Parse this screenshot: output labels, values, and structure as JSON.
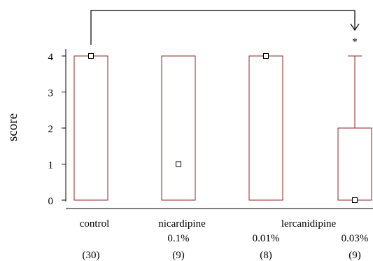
{
  "chart_data": {
    "type": "box",
    "ylabel": "score",
    "ylim": [
      0,
      4
    ],
    "yticks": [
      0,
      1,
      2,
      3,
      4
    ],
    "boxes": [
      {
        "category": "control",
        "concentration": "",
        "n": "(30)",
        "min": 0,
        "q1": 0,
        "q3": 4,
        "max": 4,
        "median": 4
      },
      {
        "category": "nicardipine",
        "concentration": "0.1%",
        "n": "(9)",
        "min": 0,
        "q1": 0,
        "q3": 4,
        "max": 4,
        "median": 1
      },
      {
        "category": "",
        "concentration": "0.01%",
        "n": "(8)",
        "min": 0,
        "q1": 0,
        "q3": 4,
        "max": 4,
        "median": 4
      },
      {
        "category": "",
        "concentration": "0.03%",
        "n": "(9)",
        "min": 0,
        "q1": 0,
        "q3": 2,
        "max": 4,
        "median": 0
      }
    ],
    "group_label": "lercanidipine",
    "significance_marker": "*",
    "comparison": {
      "from": 0,
      "to": 3
    },
    "colors": {
      "box": "#8b2323",
      "axis": "#000000"
    }
  }
}
